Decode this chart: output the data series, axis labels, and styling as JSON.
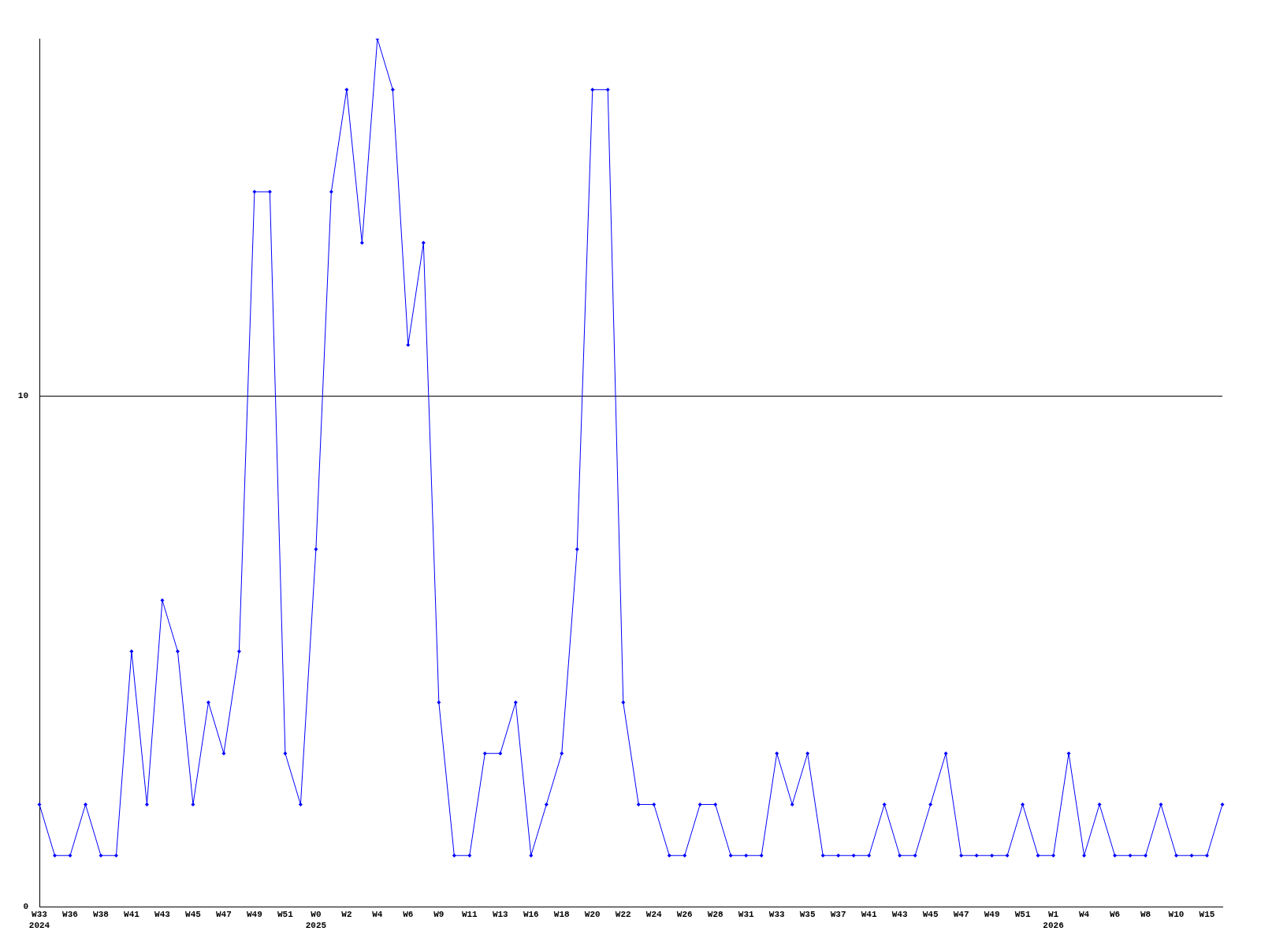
{
  "chart_data": {
    "type": "line",
    "categories": [
      "W33\n2024",
      null,
      "W36",
      null,
      "W38",
      null,
      "W41",
      null,
      "W43",
      null,
      "W45",
      null,
      "W47",
      null,
      "W49",
      null,
      "W51",
      null,
      "W0\n2025",
      null,
      "W2",
      null,
      "W4",
      null,
      "W6",
      null,
      "W9",
      null,
      "W11",
      null,
      "W13",
      null,
      "W16",
      null,
      "W18",
      null,
      "W20",
      null,
      "W22",
      null,
      "W24",
      null,
      "W26",
      null,
      "W28",
      null,
      "W31",
      null,
      "W33",
      null,
      "W35",
      null,
      "W37",
      null,
      "W41",
      null,
      "W43",
      null,
      "W45",
      null,
      "W47",
      null,
      "W49",
      null,
      "W51",
      null,
      "W1\n2026",
      null,
      "W4",
      null,
      "W6",
      null,
      "W8",
      null,
      "W10",
      null,
      "W15",
      null
    ],
    "series": [
      {
        "color": "#0000ff",
        "values": [
          2,
          1,
          1,
          2,
          1,
          1,
          5,
          2,
          6,
          5,
          2,
          4,
          3,
          5,
          14,
          14,
          3,
          2,
          7,
          14,
          16,
          13,
          17,
          16,
          11,
          13,
          4,
          1,
          1,
          3,
          3,
          4,
          1,
          2,
          3,
          7,
          16,
          16,
          4,
          2,
          2,
          1,
          1,
          2,
          2,
          1,
          1,
          1,
          3,
          2,
          3,
          1,
          1,
          1,
          1,
          2,
          1,
          1,
          2,
          3,
          1,
          1,
          1,
          1,
          2,
          1,
          1,
          3,
          1,
          2,
          1,
          1,
          1,
          2,
          1,
          1,
          1,
          2
        ]
      }
    ],
    "ylim": [
      0,
      17
    ],
    "yticks": [
      0,
      10
    ],
    "grid": "y",
    "legend": false,
    "marker": "diamond",
    "line_style": "solid"
  }
}
